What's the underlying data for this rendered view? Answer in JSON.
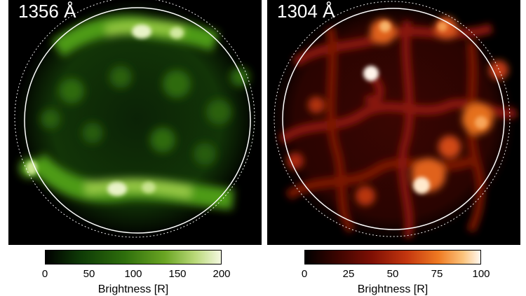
{
  "panels": {
    "left": {
      "label": "1356 Å",
      "color_low": "#000000",
      "color_mid": "#4b9a10",
      "color_high": "#f2f7d8"
    },
    "right": {
      "label": "1304 Å",
      "color_low": "#000000",
      "color_mid": "#b8200a",
      "color_high": "#fff2e0"
    }
  },
  "colorbars": {
    "left": {
      "ticks": [
        "0",
        "50",
        "100",
        "150",
        "200"
      ],
      "label": "Brightness [R]"
    },
    "right": {
      "ticks": [
        "0",
        "25",
        "50",
        "75",
        "100"
      ],
      "label": "Brightness [R]"
    }
  },
  "colors": {
    "limb": "#ffffff",
    "background": "#000000"
  }
}
